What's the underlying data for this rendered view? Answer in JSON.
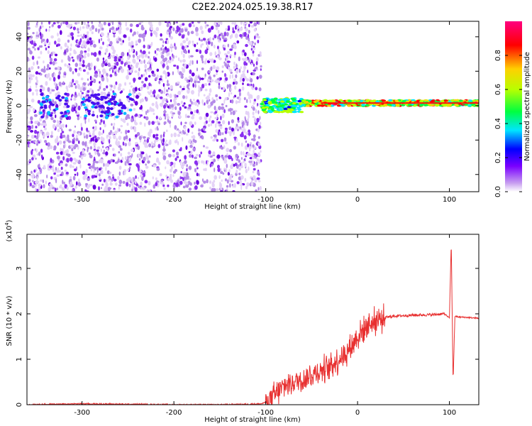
{
  "figure_title": "C2E2.2024.025.19.38.R17",
  "chart_data": [
    {
      "type": "heatmap",
      "xlabel": "Height of straight line (km)",
      "ylabel": "Frequency (Hz)",
      "xlim": [
        -360,
        132
      ],
      "ylim": [
        -50,
        49
      ],
      "xticks": [
        -300,
        -200,
        -100,
        0,
        100
      ],
      "yticks": [
        -40,
        -20,
        0,
        20,
        40
      ],
      "regions": [
        {
          "x": [
            -360,
            -105
          ],
          "freq": [
            -50,
            49
          ],
          "description_level": 0.15
        },
        {
          "x": [
            -105,
            132
          ],
          "freq_center": 1.5,
          "description_level": 0.85
        }
      ],
      "colorbar": {
        "label": "Normalized spectral amplitude",
        "range": [
          0.0,
          1.0
        ],
        "ticks": [
          0.0,
          0.2,
          0.4,
          0.6,
          0.8
        ],
        "tick_labels": [
          "0.0",
          "0.2",
          "0.4",
          "0.6",
          "0.8"
        ],
        "colors": [
          "#ffffff",
          "#c8a0f0",
          "#7a00ff",
          "#0000ff",
          "#00e5ff",
          "#00ff40",
          "#b8ff00",
          "#ffd000",
          "#ff0000",
          "#ff0080"
        ]
      },
      "grid": false
    },
    {
      "type": "line",
      "xlabel": "Height of straight line (km)",
      "ylabel": "SNR (10 * v/v)",
      "y_multiplier": "(x10",
      "y_multiplier_exp": "4",
      "y_multiplier_close": ")",
      "xlim": [
        -360,
        132
      ],
      "ylim": [
        0,
        3.75
      ],
      "xticks": [
        -300,
        -200,
        -100,
        0,
        100
      ],
      "yticks": [
        0,
        1,
        2,
        3
      ],
      "color": "#e83030",
      "grid": false,
      "series": [
        {
          "x": [
            -360,
            -300,
            -250,
            -200,
            -150,
            -120,
            -105,
            -100,
            -90,
            -80,
            -70,
            -60,
            -50,
            -40,
            -30,
            -20,
            -10,
            -5,
            0,
            5,
            10,
            20,
            30,
            40,
            60,
            80,
            95,
            100,
            102,
            104,
            106,
            110,
            120,
            132
          ],
          "y": [
            0.0,
            0.02,
            0.01,
            0.0,
            0.0,
            0.01,
            0.02,
            0.05,
            0.2,
            0.4,
            0.5,
            0.55,
            0.65,
            0.75,
            0.85,
            1.0,
            1.2,
            1.35,
            1.5,
            1.6,
            1.75,
            1.85,
            1.92,
            1.95,
            1.97,
            1.98,
            2.0,
            1.9,
            3.6,
            0.5,
            1.95,
            1.93,
            1.92,
            1.9
          ]
        }
      ]
    }
  ]
}
